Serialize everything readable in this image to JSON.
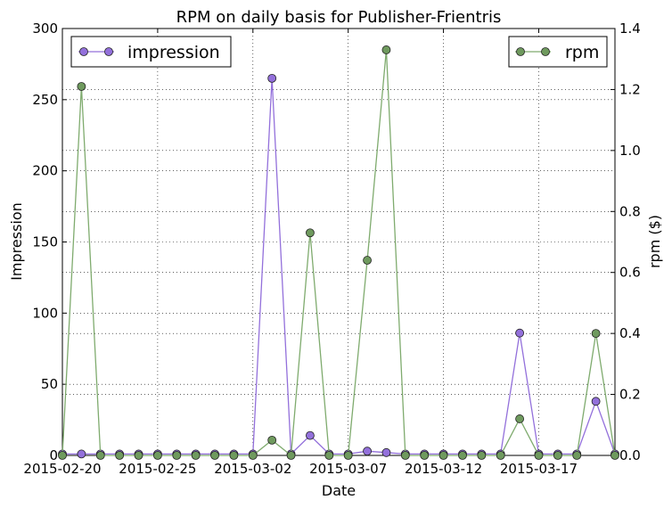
{
  "chart_data": {
    "type": "line",
    "title": "RPM on daily basis for Publisher-Frientris",
    "xlabel": "Date",
    "ylabel": "Impression",
    "y2label": "rpm ($)",
    "x_start": "2015-02-20",
    "x_end": "2015-03-21",
    "x_tick_labels": [
      "2015-02-20",
      "2015-02-25",
      "2015-03-02",
      "2015-03-07",
      "2015-03-12",
      "2015-03-17"
    ],
    "ylim": [
      0,
      300
    ],
    "y_ticks": [
      0,
      50,
      100,
      150,
      200,
      250,
      300
    ],
    "y2lim": [
      0,
      1.4
    ],
    "y2_ticks": [
      "0.0",
      "0.2",
      "0.4",
      "0.6",
      "0.8",
      "1.0",
      "1.2",
      "1.4"
    ],
    "grid": true,
    "dates": [
      "2015-02-20",
      "2015-02-21",
      "2015-02-22",
      "2015-02-23",
      "2015-02-24",
      "2015-02-25",
      "2015-02-26",
      "2015-02-27",
      "2015-02-28",
      "2015-03-01",
      "2015-03-02",
      "2015-03-03",
      "2015-03-04",
      "2015-03-05",
      "2015-03-06",
      "2015-03-07",
      "2015-03-08",
      "2015-03-09",
      "2015-03-10",
      "2015-03-11",
      "2015-03-12",
      "2015-03-13",
      "2015-03-14",
      "2015-03-15",
      "2015-03-16",
      "2015-03-17",
      "2015-03-18",
      "2015-03-19",
      "2015-03-20",
      "2015-03-21"
    ],
    "series": [
      {
        "name": "impression",
        "axis": "left",
        "color": "#9370db",
        "marker_color": "#9370db",
        "legend_position": "upper-left",
        "values": [
          1,
          1,
          1,
          1,
          1,
          1,
          1,
          1,
          1,
          1,
          1,
          265,
          1,
          14,
          1,
          1,
          3,
          2,
          1,
          1,
          1,
          1,
          1,
          1,
          86,
          1,
          1,
          1,
          38,
          1
        ]
      },
      {
        "name": "rpm",
        "axis": "right",
        "color": "#7fab6e",
        "marker_color": "#6f9a5e",
        "legend_position": "upper-right",
        "values": [
          0,
          1.21,
          0,
          0,
          0,
          0,
          0,
          0,
          0,
          0,
          0,
          0.05,
          0,
          0.73,
          0,
          0,
          0.64,
          1.33,
          0,
          0,
          0,
          0,
          0,
          0,
          0.12,
          0,
          0,
          0,
          0.4,
          0
        ]
      }
    ]
  }
}
